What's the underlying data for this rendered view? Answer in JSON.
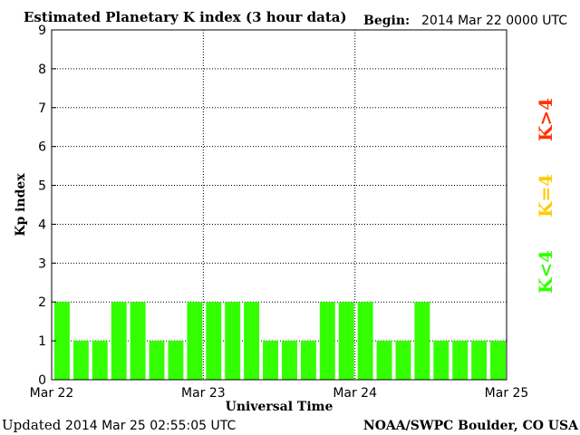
{
  "chart_data": {
    "type": "bar",
    "title": "Estimated Planetary K index (3 hour data)",
    "begin_label": "Begin:",
    "begin_value": "2014 Mar 22 0000 UTC",
    "ylabel": "Kp index",
    "xlabel": "Universal Time",
    "ylim": [
      0,
      9
    ],
    "yticks": [
      "0",
      "1",
      "2",
      "3",
      "4",
      "5",
      "6",
      "7",
      "8",
      "9"
    ],
    "xticks": [
      "Mar 22",
      "Mar 23",
      "Mar 24",
      "Mar 25"
    ],
    "grid": "dotted",
    "values": [
      2,
      1,
      1,
      2,
      2,
      1,
      1,
      2,
      2,
      2,
      2,
      1,
      1,
      1,
      2,
      2,
      2,
      1,
      1,
      2,
      1,
      1,
      1,
      1
    ],
    "bar_color": "#33ff00",
    "legend": [
      {
        "label": "K<4",
        "color": "#33ff00"
      },
      {
        "label": "K=4",
        "color": "#ffcc00"
      },
      {
        "label": "K>4",
        "color": "#ff3300"
      }
    ],
    "updated_label": "Updated",
    "updated_value": "2014 Mar 25 02:55:05 UTC",
    "source": "NOAA/SWPC Boulder, CO USA"
  }
}
